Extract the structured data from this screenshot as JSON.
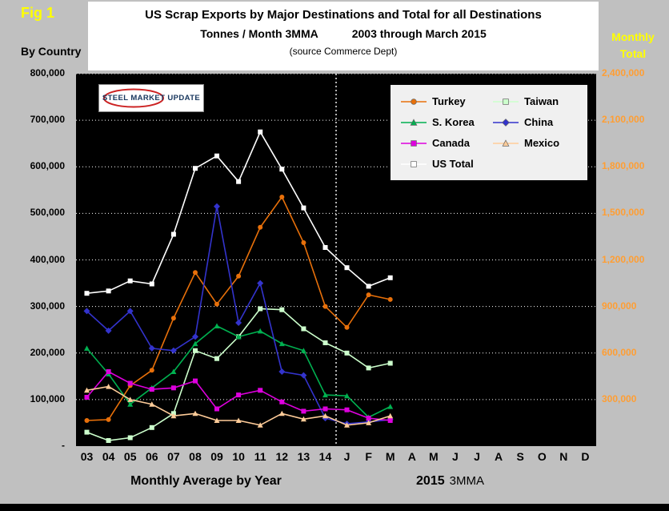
{
  "fig_label": "Fig 1",
  "title": {
    "line1": "US Scrap Exports by Major Destinations and Total for all Destinations",
    "line2_left": "Tonnes / Month 3MMA",
    "line2_right": "2003 through March 2015",
    "source": "(source Commerce Dept)"
  },
  "logo": {
    "text": "STEEL MARKET UPDATE"
  },
  "left_axis": {
    "title": "By Country",
    "ticks": [
      "800,000",
      "700,000",
      "600,000",
      "500,000",
      "400,000",
      "300,000",
      "200,000",
      "100,000",
      "-"
    ]
  },
  "right_axis": {
    "title_line1": "Monthly",
    "title_line2": "Total",
    "ticks": [
      "2,400,000",
      "2,100,000",
      "1,800,000",
      "1,500,000",
      "1,200,000",
      "900,000",
      "600,000",
      "300,000"
    ],
    "tick_color": "#ff9e33",
    "title_color": "#ffff00"
  },
  "captions": {
    "left": "Monthly Average by Year",
    "right_bold": "2015",
    "right_rest": "3MMA"
  },
  "legend": {
    "items": [
      "Turkey",
      "Taiwan",
      "S. Korea",
      "China",
      "Canada",
      "Mexico",
      "US Total"
    ]
  },
  "colors": {
    "background": "#c0c0c0",
    "plot_background": "#000000",
    "grid": "#ffffff",
    "fig_label": "#ffff00"
  },
  "chart_data": {
    "type": "line",
    "title": "US Scrap Exports by Major Destinations and Total for all Destinations",
    "subtitle": "Tonnes / Month 3MMA, 2003 through March 2015",
    "source": "(source Commerce Dept)",
    "x_note": "2003-2014 are monthly averages by year; J-M are 2015 monthly 3MMA values; A-D 2015 have no data",
    "categories": [
      "03",
      "04",
      "05",
      "06",
      "07",
      "08",
      "09",
      "10",
      "11",
      "12",
      "13",
      "14",
      "J",
      "F",
      "M",
      "A",
      "M",
      "J",
      "J",
      "A",
      "S",
      "O",
      "N",
      "D"
    ],
    "separator_after_index": 11,
    "left_axis_max": 800000,
    "left_axis_step": 100000,
    "right_axis_max": 2400000,
    "right_axis_step": 300000,
    "grid": "horizontal-dotted-white",
    "legend_position": "top-right-inside",
    "series": [
      {
        "name": "Turkey",
        "color": "#e8700a",
        "marker": "circle",
        "axis": "left",
        "values": [
          55000,
          57000,
          130000,
          163000,
          275000,
          373000,
          305000,
          365000,
          470000,
          535000,
          437000,
          300000,
          255000,
          325000,
          315000
        ]
      },
      {
        "name": "Taiwan",
        "color": "#ccffcc",
        "marker": "square",
        "axis": "left",
        "values": [
          30000,
          12000,
          18000,
          40000,
          70000,
          205000,
          188000,
          235000,
          295000,
          293000,
          252000,
          222000,
          200000,
          168000,
          178000
        ]
      },
      {
        "name": "S. Korea",
        "color": "#00b050",
        "marker": "triangle",
        "axis": "left",
        "values": [
          210000,
          155000,
          90000,
          125000,
          160000,
          220000,
          258000,
          235000,
          247000,
          220000,
          205000,
          110000,
          108000,
          62000,
          85000
        ]
      },
      {
        "name": "China",
        "color": "#3333cc",
        "marker": "diamond",
        "axis": "left",
        "values": [
          290000,
          248000,
          290000,
          210000,
          205000,
          235000,
          515000,
          265000,
          350000,
          160000,
          152000,
          60000,
          48000,
          52000,
          57000
        ]
      },
      {
        "name": "Canada",
        "color": "#dd00dd",
        "marker": "square",
        "axis": "left",
        "values": [
          105000,
          160000,
          135000,
          122000,
          125000,
          140000,
          80000,
          110000,
          120000,
          95000,
          75000,
          80000,
          78000,
          60000,
          55000
        ]
      },
      {
        "name": "Mexico",
        "color": "#ffcc99",
        "marker": "triangle",
        "axis": "left",
        "values": [
          120000,
          128000,
          100000,
          90000,
          65000,
          70000,
          55000,
          55000,
          45000,
          70000,
          58000,
          65000,
          45000,
          50000,
          65000
        ]
      },
      {
        "name": "US Total",
        "color": "#ffffff",
        "marker": "square",
        "axis": "right",
        "values": [
          985000,
          1000000,
          1065000,
          1045000,
          1365000,
          1790000,
          1870000,
          1705000,
          2025000,
          1785000,
          1535000,
          1280000,
          1150000,
          1030000,
          1085000
        ]
      }
    ]
  }
}
